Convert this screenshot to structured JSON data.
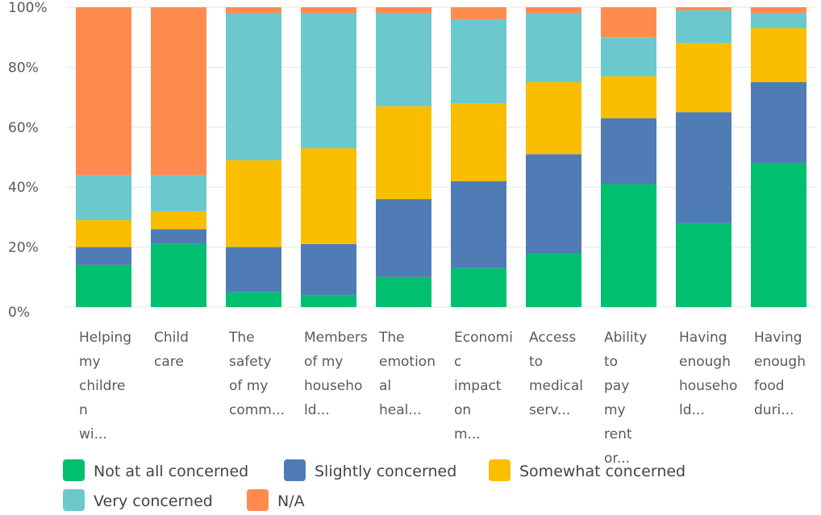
{
  "chart_data": {
    "type": "bar",
    "stacked": true,
    "percent_stacked": true,
    "title": "",
    "xlabel": "",
    "ylabel": "",
    "ylim": [
      0,
      100
    ],
    "y_ticks": [
      "0%",
      "20%",
      "40%",
      "60%",
      "80%",
      "100%"
    ],
    "grid": true,
    "legend_position": "bottom",
    "categories": [
      "Helping my childre n wi...",
      "Child care",
      "The safety of my comm...",
      "Members of my househo ld...",
      "The emotion al heal...",
      "Economi c impact on m...",
      "Access to medical serv...",
      "Ability to pay my rent or...",
      "Having enough househo ld...",
      "Having enough food duri..."
    ],
    "category_lines": [
      [
        "Helping",
        "my",
        "childre",
        "n",
        "wi..."
      ],
      [
        "Child",
        "care"
      ],
      [
        "The",
        "safety",
        "of my",
        "comm..."
      ],
      [
        "Members",
        "of my",
        "househo",
        "ld..."
      ],
      [
        "The",
        "emotion",
        "al",
        "heal..."
      ],
      [
        "Economi",
        "c",
        "impact",
        "on",
        "m..."
      ],
      [
        "Access",
        "to",
        "medical",
        "serv..."
      ],
      [
        "Ability",
        "to",
        "pay",
        "my",
        "rent",
        "or..."
      ],
      [
        "Having",
        "enough",
        "househo",
        "ld..."
      ],
      [
        "Having",
        "enough",
        "food",
        "duri..."
      ]
    ],
    "series": [
      {
        "name": "Not at all concerned",
        "color": "#00BF6F",
        "values": [
          14,
          21,
          5,
          4,
          10,
          13,
          18,
          41,
          28,
          48
        ]
      },
      {
        "name": "Slightly concerned",
        "color": "#507CB6",
        "values": [
          6,
          5,
          15,
          17,
          26,
          29,
          33,
          22,
          37,
          27
        ]
      },
      {
        "name": "Somewhat concerned",
        "color": "#F9BE00",
        "values": [
          9,
          6,
          29,
          32,
          31,
          26,
          24,
          14,
          23,
          18
        ]
      },
      {
        "name": "Very concerned",
        "color": "#6BC8CD",
        "values": [
          15,
          12,
          49,
          45,
          31,
          28,
          23,
          13,
          11,
          5
        ]
      },
      {
        "name": "N/A",
        "color": "#FF8B4F",
        "values": [
          56,
          56,
          2,
          2,
          2,
          4,
          2,
          10,
          1,
          2
        ]
      }
    ]
  }
}
